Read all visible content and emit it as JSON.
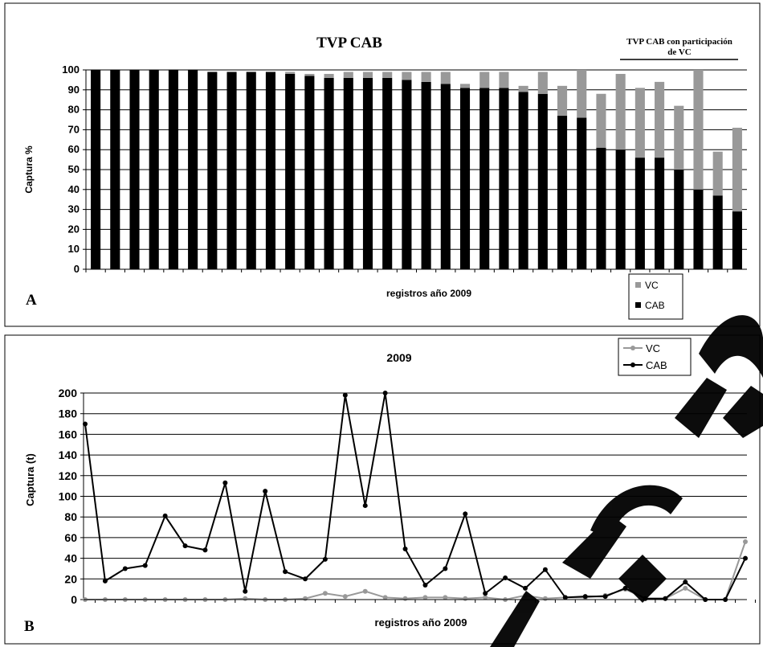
{
  "panels": {
    "a_letter": "A",
    "b_letter": "B"
  },
  "chart_data": [
    {
      "type": "bar",
      "stacked": true,
      "title": "TVP CAB",
      "annotation": "TVP CAB con participación de VC",
      "xlabel": "registros año 2009",
      "ylabel": "Captura %",
      "ylim": [
        0,
        100
      ],
      "yticks": [
        0,
        10,
        20,
        30,
        40,
        50,
        60,
        70,
        80,
        90,
        100
      ],
      "grid": true,
      "legend_position": "bottom-right",
      "series": [
        {
          "name": "CAB",
          "color": "#000000",
          "values": [
            100,
            100,
            100,
            100,
            100,
            100,
            99,
            99,
            99,
            99,
            98,
            97,
            96,
            96,
            96,
            96,
            95,
            94,
            93,
            91,
            91,
            91,
            89,
            88,
            77,
            76,
            61,
            60,
            56,
            56,
            50,
            40,
            37,
            29
          ]
        },
        {
          "name": "VC",
          "color": "#999999",
          "values": [
            0,
            0,
            0,
            0,
            0,
            0,
            0,
            0,
            0,
            0,
            1,
            1,
            2,
            3,
            3,
            3,
            4,
            5,
            6,
            2,
            8,
            8,
            3,
            11,
            15,
            24,
            27,
            38,
            35,
            38,
            32,
            60,
            22,
            42
          ]
        }
      ]
    },
    {
      "type": "line",
      "title": "2009",
      "xlabel": "registros año 2009",
      "ylabel": "Captura (t)",
      "ylim": [
        0,
        200
      ],
      "yticks": [
        0,
        20,
        40,
        60,
        80,
        100,
        120,
        140,
        160,
        180,
        200
      ],
      "grid": true,
      "legend_position": "top-right",
      "series": [
        {
          "name": "VC",
          "color": "#999999",
          "values": [
            0,
            0,
            0,
            0,
            0,
            0,
            0,
            0,
            1,
            0,
            0,
            1,
            6,
            3,
            8,
            2,
            1,
            2,
            2,
            1,
            2,
            0,
            4,
            1,
            2,
            2,
            4,
            10,
            1,
            1,
            11,
            0,
            0,
            56
          ]
        },
        {
          "name": "CAB",
          "color": "#000000",
          "values": [
            170,
            18,
            30,
            33,
            81,
            52,
            48,
            113,
            8,
            105,
            27,
            20,
            39,
            198,
            91,
            205,
            49,
            14,
            30,
            83,
            6,
            21,
            11,
            29,
            2,
            3,
            3,
            11,
            1,
            1,
            17,
            0,
            0,
            40
          ]
        }
      ]
    }
  ]
}
